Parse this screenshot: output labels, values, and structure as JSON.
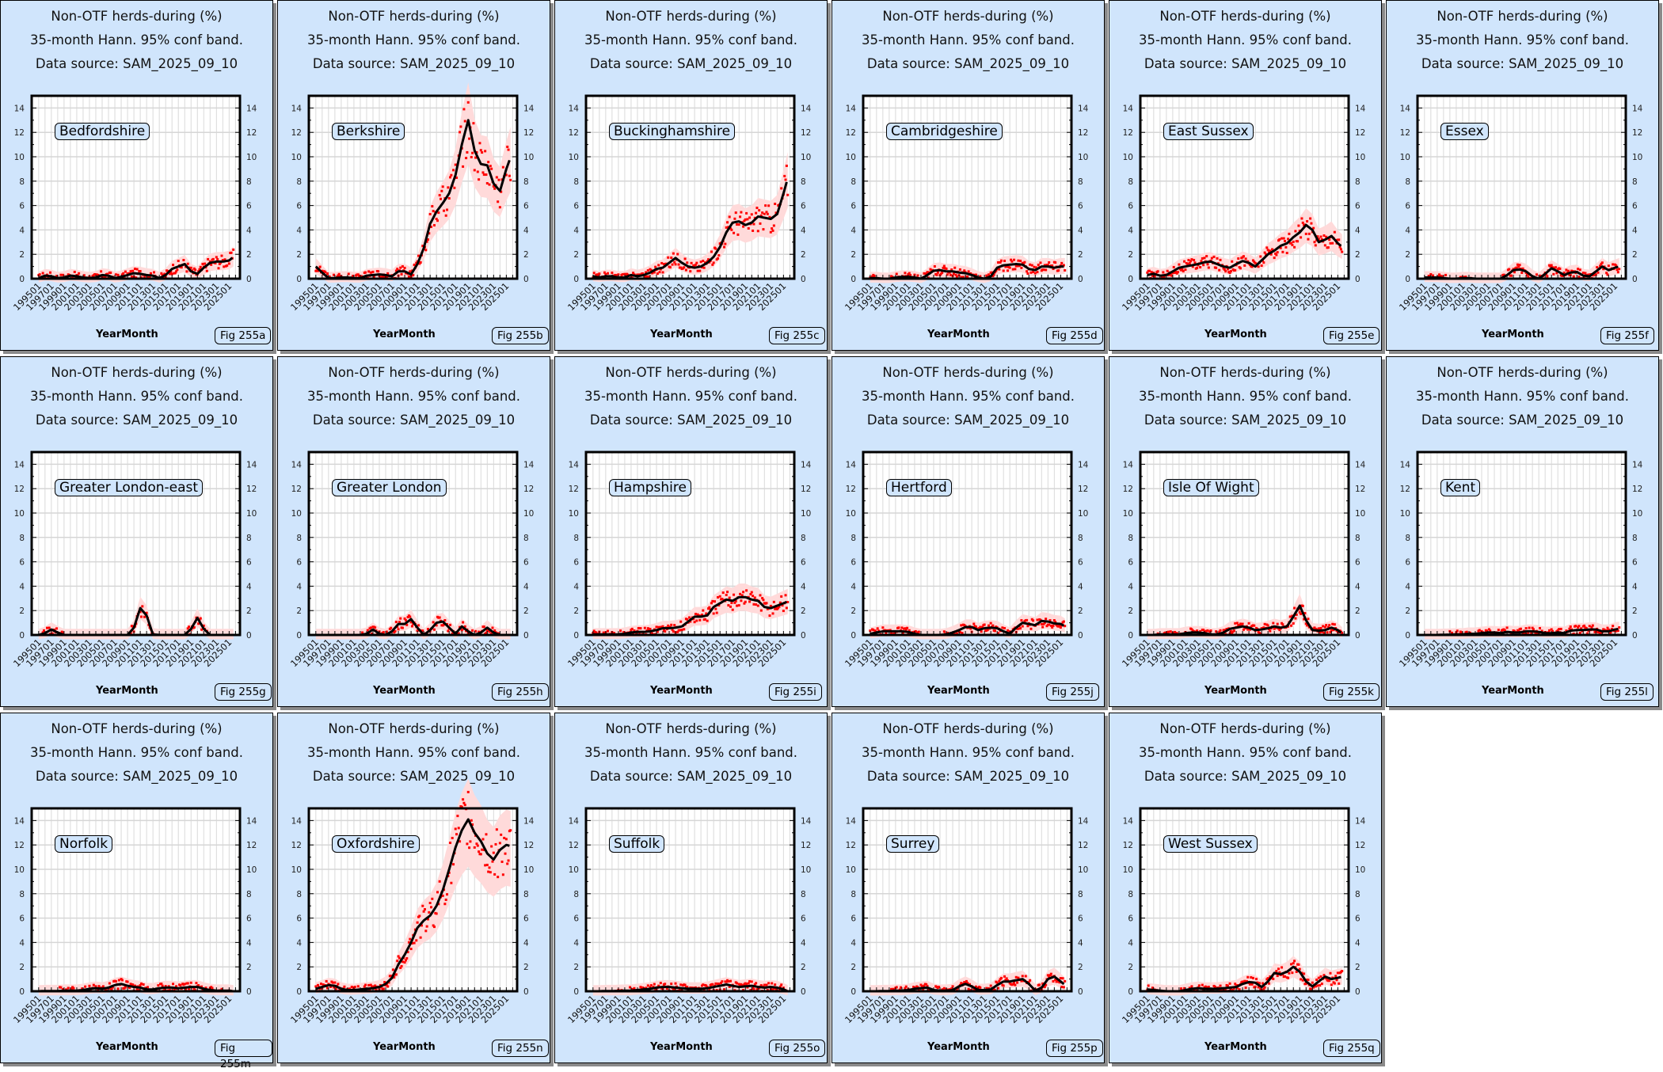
{
  "common": {
    "title": "Non-OTF herds-during (%)",
    "subtitle": "35-month Hann. 95% conf band.",
    "source": "Data source: SAM_2025_09_10",
    "xlabel": "YearMonth",
    "type": "line",
    "ylim": [
      0,
      15
    ],
    "xlim": [
      1993.9,
      2026.7
    ],
    "yticks": [
      "0",
      "2",
      "4",
      "6",
      "8",
      "10",
      "12",
      "14"
    ],
    "xticks": [
      "199501",
      "199701",
      "199901",
      "200101",
      "200301",
      "200501",
      "200701",
      "200901",
      "201101",
      "201301",
      "201501",
      "201701",
      "201901",
      "202101",
      "202301",
      "202501"
    ],
    "x": [
      1995,
      1996,
      1997,
      1998,
      1999,
      2000,
      2001,
      2002,
      2003,
      2004,
      2005,
      2006,
      2007,
      2008,
      2009,
      2010,
      2011,
      2012,
      2013,
      2014,
      2015,
      2016,
      2017,
      2018,
      2019,
      2020,
      2021,
      2022,
      2023,
      2024,
      2025,
      2025.7
    ],
    "colors": {
      "panel_bg": "#d0e5fc",
      "band": "#ffdada",
      "points": "#ff0000",
      "line": "#000000"
    }
  },
  "chart_data": [
    {
      "region": "Bedfordshire",
      "fig": "Fig 255a",
      "smooth": [
        0.05,
        0.25,
        0.2,
        0.05,
        0.1,
        0.25,
        0.2,
        0.1,
        0.05,
        0.1,
        0.3,
        0.25,
        0.05,
        0.15,
        0.3,
        0.45,
        0.4,
        0.3,
        0.25,
        0.05,
        0.3,
        0.8,
        1.0,
        1.2,
        0.6,
        0.4,
        0.9,
        1.3,
        1.4,
        1.4,
        1.5,
        1.8
      ]
    },
    {
      "region": "Berkshire",
      "fig": "Fig 255b",
      "smooth": [
        1.0,
        0.5,
        0.05,
        0.05,
        0.1,
        0.1,
        0.05,
        0.05,
        0.25,
        0.3,
        0.35,
        0.3,
        0.2,
        0.6,
        0.6,
        0.35,
        1.2,
        2.5,
        4.5,
        5.5,
        6.2,
        7.0,
        8.5,
        11.0,
        13.0,
        10.5,
        9.4,
        9.3,
        7.8,
        7.2,
        9.0,
        10.0
      ]
    },
    {
      "region": "Buckinghamshire",
      "fig": "Fig 255c",
      "smooth": [
        0.2,
        0.1,
        0.2,
        0.2,
        0.1,
        0.1,
        0.3,
        0.2,
        0.3,
        0.5,
        0.8,
        0.9,
        1.3,
        1.7,
        1.3,
        1.0,
        0.9,
        1.0,
        1.3,
        1.8,
        2.6,
        3.8,
        4.6,
        4.7,
        4.4,
        4.6,
        5.1,
        5.0,
        4.9,
        5.3,
        7.0,
        8.3
      ]
    },
    {
      "region": "Cambridgeshire",
      "fig": "Fig 255d",
      "smooth": [
        0.05,
        0.05,
        0.0,
        0.0,
        0.1,
        0.15,
        0.15,
        0.1,
        0.0,
        0.3,
        0.65,
        0.7,
        0.6,
        0.6,
        0.5,
        0.45,
        0.3,
        0.1,
        0.0,
        0.2,
        0.9,
        1.1,
        1.15,
        1.2,
        1.15,
        0.8,
        0.7,
        1.0,
        1.0,
        0.9,
        1.0,
        1.0
      ]
    },
    {
      "region": "East Sussex",
      "fig": "Fig 255e",
      "smooth": [
        0.3,
        0.4,
        0.25,
        0.3,
        0.6,
        0.9,
        1.0,
        1.1,
        1.2,
        1.35,
        1.4,
        1.2,
        1.0,
        0.9,
        1.2,
        1.45,
        1.3,
        1.0,
        1.5,
        2.0,
        2.3,
        2.7,
        2.9,
        3.4,
        3.8,
        4.4,
        4.0,
        3.0,
        3.2,
        3.5,
        2.9,
        2.6
      ]
    },
    {
      "region": "Essex",
      "fig": "Fig 255f",
      "smooth": [
        0.1,
        0.1,
        0.1,
        0.05,
        0.0,
        0.0,
        0.05,
        0.05,
        0.0,
        0.0,
        0.0,
        0.0,
        0.0,
        0.3,
        0.7,
        0.75,
        0.6,
        0.2,
        0.0,
        0.4,
        0.85,
        0.6,
        0.3,
        0.5,
        0.55,
        0.25,
        0.2,
        0.6,
        1.0,
        0.7,
        0.9,
        1.0
      ]
    },
    {
      "region": "Greater London-east",
      "fig": "Fig 255g",
      "smooth": [
        0,
        0.15,
        0.45,
        0.2,
        0,
        0,
        0,
        0,
        0,
        0,
        0,
        0,
        0,
        0,
        0,
        0.6,
        2.2,
        1.6,
        0.05,
        0,
        0,
        0,
        0,
        0,
        0.5,
        1.4,
        0.5,
        0,
        0,
        0,
        0,
        0
      ]
    },
    {
      "region": "Greater London",
      "fig": "Fig 255h",
      "smooth": [
        0,
        0,
        0,
        0,
        0,
        0,
        0,
        0,
        0.1,
        0.45,
        0.1,
        0,
        0.3,
        0.9,
        0.9,
        1.3,
        0.6,
        0,
        0.4,
        1.0,
        1.1,
        0.6,
        0.1,
        0.7,
        0.3,
        0,
        0.2,
        0.6,
        0.2,
        0,
        0,
        0
      ]
    },
    {
      "region": "Hampshire",
      "fig": "Fig 255i",
      "smooth": [
        0.05,
        0.05,
        0.05,
        0.05,
        0.05,
        0.1,
        0.2,
        0.25,
        0.25,
        0.3,
        0.4,
        0.55,
        0.55,
        0.6,
        0.7,
        1.1,
        1.5,
        1.5,
        1.6,
        2.3,
        2.6,
        2.9,
        2.8,
        3.1,
        3.1,
        2.9,
        2.8,
        2.3,
        2.2,
        2.4,
        2.6,
        2.75
      ]
    },
    {
      "region": "Hertford",
      "fig": "Fig 255j",
      "smooth": [
        0.1,
        0.2,
        0.3,
        0.3,
        0.3,
        0.3,
        0.25,
        0.1,
        0.0,
        0.0,
        0.0,
        0.0,
        0.05,
        0.2,
        0.4,
        0.65,
        0.65,
        0.4,
        0.55,
        0.6,
        0.55,
        0.3,
        0.1,
        0.6,
        1.0,
        0.9,
        0.8,
        1.15,
        1.1,
        0.95,
        0.9,
        0.7
      ]
    },
    {
      "region": "Isle Of Wight",
      "fig": "Fig 255k",
      "smooth": [
        0.0,
        0.0,
        0.05,
        0.05,
        0.05,
        0.05,
        0.15,
        0.2,
        0.2,
        0.15,
        0.05,
        0.05,
        0.2,
        0.5,
        0.6,
        0.7,
        0.6,
        0.4,
        0.45,
        0.55,
        0.7,
        0.6,
        0.7,
        1.5,
        2.4,
        1.2,
        0.4,
        0.35,
        0.4,
        0.6,
        0.4,
        0.1
      ]
    },
    {
      "region": "Kent",
      "fig": "Fig 255l",
      "smooth": [
        0,
        0,
        0,
        0.02,
        0.03,
        0.05,
        0.05,
        0.1,
        0.1,
        0.15,
        0.2,
        0.2,
        0.15,
        0.25,
        0.2,
        0.2,
        0.3,
        0.3,
        0.25,
        0.15,
        0.15,
        0.2,
        0.15,
        0.35,
        0.4,
        0.4,
        0.45,
        0.45,
        0.3,
        0.3,
        0.45,
        0.5
      ]
    },
    {
      "region": "Norfolk",
      "fig": "Fig 255m",
      "smooth": [
        0.0,
        0.02,
        0.02,
        0.02,
        0.05,
        0.05,
        0.05,
        0.1,
        0.2,
        0.25,
        0.2,
        0.3,
        0.5,
        0.6,
        0.45,
        0.35,
        0.3,
        0.15,
        0.15,
        0.25,
        0.3,
        0.3,
        0.25,
        0.3,
        0.35,
        0.35,
        0.2,
        0.1,
        0.05,
        0.05,
        0.05,
        0.0
      ]
    },
    {
      "region": "Oxfordshire",
      "fig": "Fig 255n",
      "smooth": [
        0.2,
        0.35,
        0.5,
        0.45,
        0.2,
        0.1,
        0.1,
        0.15,
        0.2,
        0.25,
        0.35,
        0.6,
        1.1,
        2.2,
        3.0,
        4.0,
        5.2,
        5.8,
        6.2,
        7.0,
        8.3,
        10.0,
        11.8,
        13.2,
        14.1,
        13.0,
        12.3,
        11.3,
        10.8,
        11.6,
        12.0,
        11.9
      ]
    },
    {
      "region": "Suffolk",
      "fig": "Fig 255o",
      "smooth": [
        0,
        0,
        0.02,
        0.02,
        0.03,
        0.05,
        0.05,
        0.1,
        0.15,
        0.2,
        0.3,
        0.35,
        0.35,
        0.3,
        0.25,
        0.2,
        0.2,
        0.2,
        0.25,
        0.35,
        0.45,
        0.55,
        0.45,
        0.35,
        0.4,
        0.45,
        0.35,
        0.3,
        0.35,
        0.3,
        0.15,
        0.0
      ]
    },
    {
      "region": "Surrey",
      "fig": "Fig 255p",
      "smooth": [
        0.0,
        0.0,
        0.02,
        0.02,
        0.05,
        0.05,
        0.1,
        0.2,
        0.25,
        0.3,
        0.1,
        0.05,
        0.05,
        0.1,
        0.4,
        0.6,
        0.4,
        0.1,
        0.1,
        0.15,
        0.5,
        0.8,
        0.8,
        0.9,
        1.0,
        0.6,
        0.05,
        0.3,
        1.0,
        1.2,
        0.8,
        0.5
      ]
    },
    {
      "region": "West Sussex",
      "fig": "Fig 255q",
      "smooth": [
        0.15,
        0.1,
        0.05,
        0.0,
        0.0,
        0.0,
        0.1,
        0.2,
        0.25,
        0.2,
        0.2,
        0.2,
        0.25,
        0.3,
        0.35,
        0.6,
        0.75,
        0.7,
        0.35,
        0.8,
        1.5,
        1.4,
        1.6,
        2.0,
        1.6,
        0.8,
        0.4,
        0.8,
        1.2,
        1.0,
        1.1,
        1.2
      ]
    }
  ]
}
